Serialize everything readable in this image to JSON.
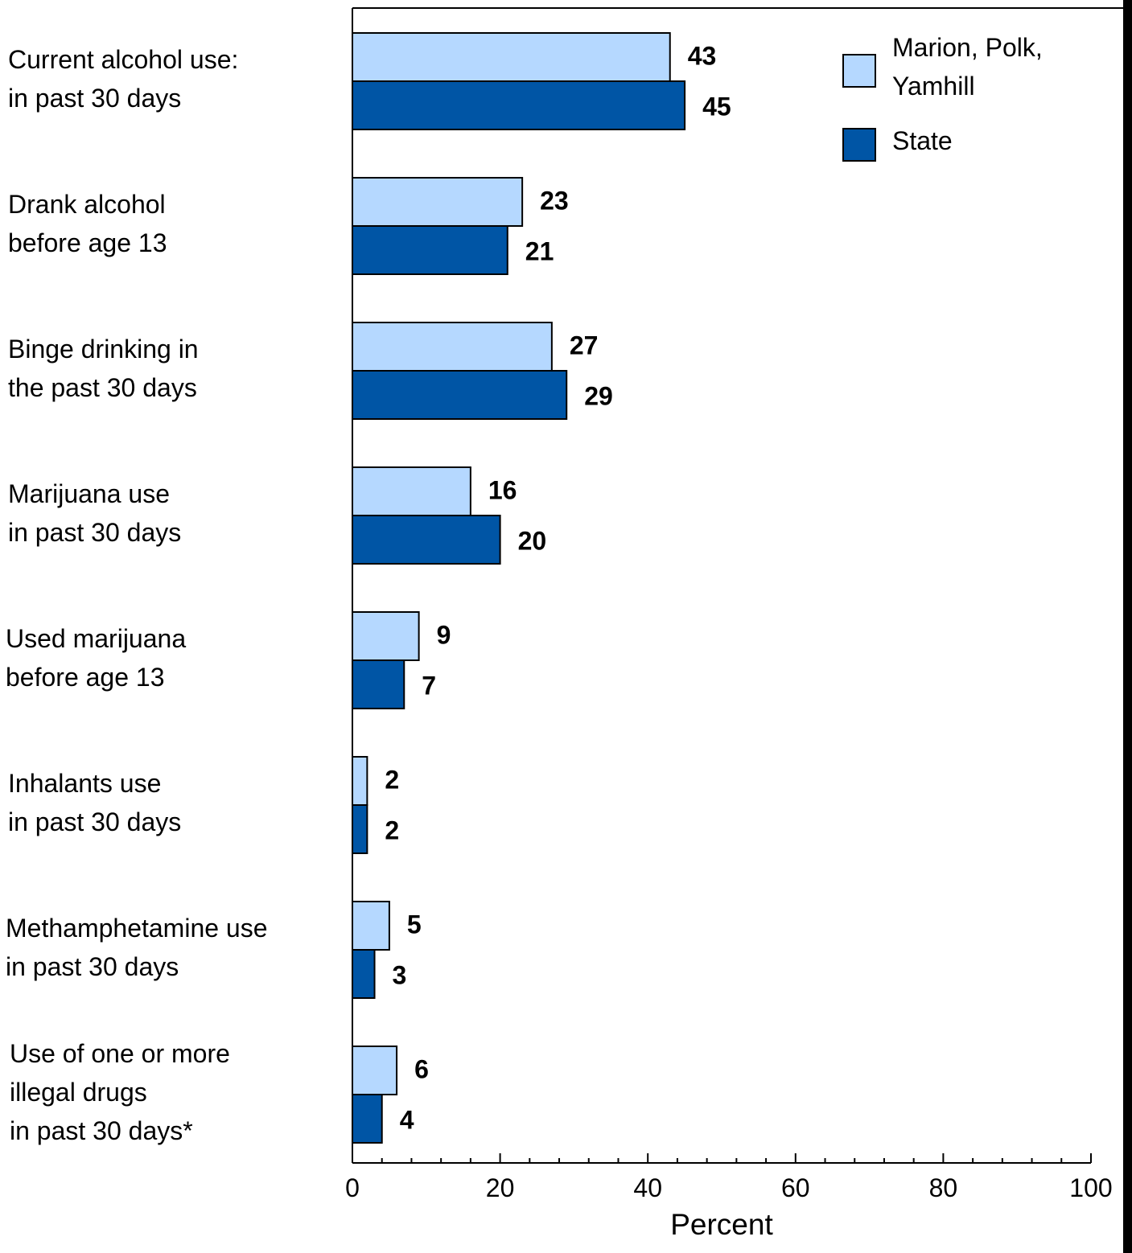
{
  "chart_data": {
    "type": "bar",
    "orientation": "horizontal",
    "categories": [
      [
        "Current alcohol use:",
        "in past 30 days"
      ],
      [
        "Drank alcohol",
        "before age 13"
      ],
      [
        "Binge drinking in",
        "the past 30 days"
      ],
      [
        "Marijuana use",
        "in past 30 days"
      ],
      [
        "Used marijuana",
        "before age 13"
      ],
      [
        "Inhalants use",
        "in past 30 days"
      ],
      [
        "Methamphetamine use",
        "in past 30 days"
      ],
      [
        "Use of one or more",
        "illegal drugs",
        "in past 30 days*"
      ]
    ],
    "series": [
      {
        "name": "Marion, Polk, Yamhill",
        "legend_lines": [
          "Marion, Polk,",
          "Yamhill"
        ],
        "color": "#b5d8ff",
        "values": [
          43,
          23,
          27,
          16,
          9,
          2,
          5,
          6
        ]
      },
      {
        "name": "State",
        "legend_lines": [
          "State"
        ],
        "color": "#0055a5",
        "values": [
          45,
          21,
          29,
          20,
          7,
          2,
          3,
          4
        ]
      }
    ],
    "xlabel": "Percent",
    "xlim": [
      0,
      100
    ],
    "xticks": [
      0,
      20,
      40,
      60,
      80,
      100
    ],
    "minor_tick_step": 4,
    "grid": false,
    "legend_position": "top-right"
  }
}
